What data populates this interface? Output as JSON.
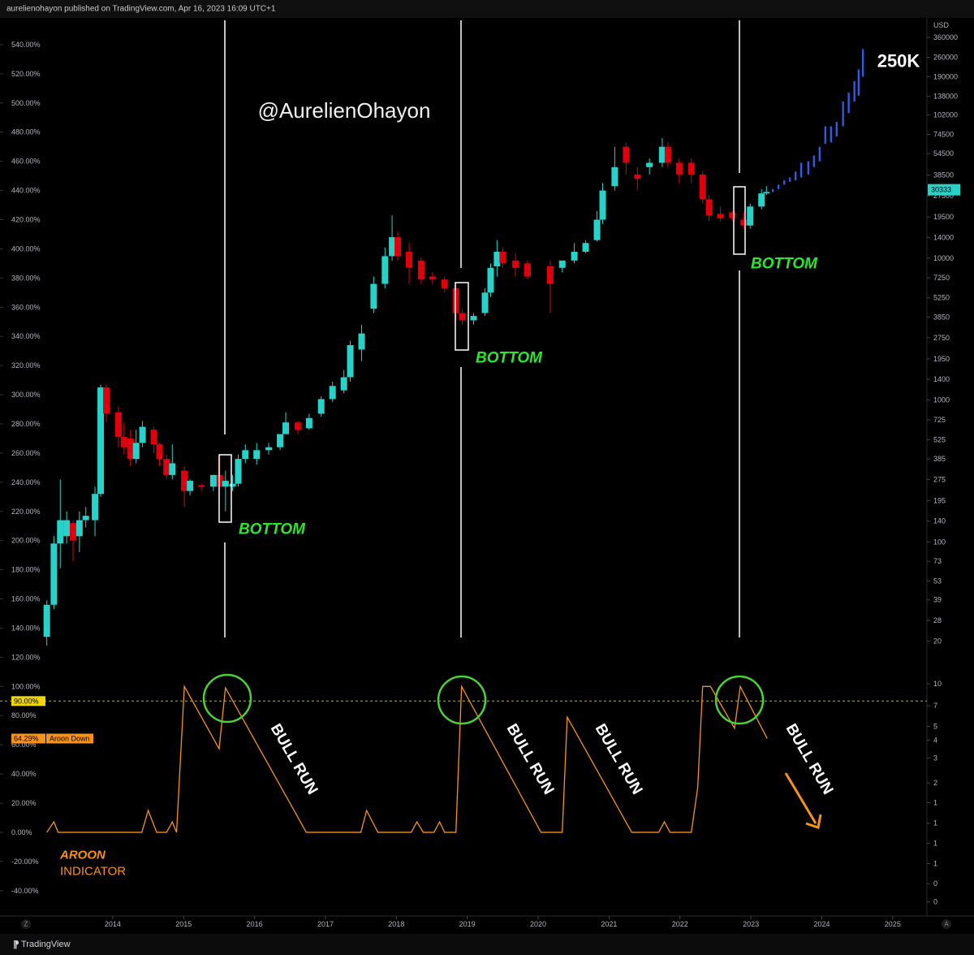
{
  "header": {
    "byline": "aurelienohayon published on TradingView.com, Apr 16, 2023 16:09 UTC+1"
  },
  "footer": {
    "brand": "TradingView",
    "left_button": "Z",
    "right_button": "A"
  },
  "chart_data": {
    "type": "candlestick",
    "x": [
      2013.07,
      2013.17,
      2013.26,
      2013.35,
      2013.44,
      2013.53,
      2013.62,
      2013.75,
      2013.83,
      2013.91,
      2014.08,
      2014.16,
      2014.25,
      2014.33,
      2014.42,
      2014.58,
      2014.66,
      2014.76,
      2014.84,
      2015.01,
      2015.09,
      2015.25,
      2015.42,
      2015.51,
      2015.59,
      2015.69,
      2015.77,
      2015.87,
      2016.03,
      2016.2,
      2016.36,
      2016.44,
      2016.61,
      2016.77,
      2016.94,
      2017.1,
      2017.26,
      2017.35,
      2017.51,
      2017.68,
      2017.84,
      2017.94,
      2018.02,
      2018.18,
      2018.35,
      2018.51,
      2018.68,
      2018.84,
      2018.93,
      2019.09,
      2019.25,
      2019.33,
      2019.42,
      2019.5,
      2019.68,
      2019.85,
      2020.17,
      2020.34,
      2020.51,
      2020.67,
      2020.83,
      2020.91,
      2021.08,
      2021.24,
      2021.4,
      2021.57,
      2021.75,
      2021.83,
      2021.99,
      2022.16,
      2022.32,
      2022.41,
      2022.57,
      2022.74,
      2022.9,
      2022.99,
      2023.15,
      2023.22
    ],
    "open": [
      134,
      156,
      198,
      203,
      212,
      203,
      214,
      214,
      232,
      305,
      288,
      271,
      270,
      256,
      267,
      276,
      266,
      256,
      245,
      248,
      234,
      238,
      237,
      245,
      237,
      237,
      239,
      256,
      256,
      262,
      264,
      273,
      281,
      277,
      287,
      297,
      303,
      312,
      331,
      359,
      376,
      395,
      408,
      398,
      392,
      381,
      379,
      373,
      356,
      351,
      356,
      370,
      388,
      398,
      392,
      390,
      388,
      387,
      392,
      398,
      406,
      420,
      443,
      470,
      451,
      456,
      459,
      470,
      459,
      459,
      451,
      434,
      424,
      425,
      420,
      416,
      429,
      438
    ],
    "high": [
      159,
      203,
      242,
      220,
      214,
      220,
      223,
      237,
      307,
      307,
      292,
      281,
      276,
      276,
      282,
      278,
      267,
      259,
      266,
      251,
      242,
      239,
      245,
      259,
      248,
      245,
      259,
      266,
      267,
      267,
      273,
      288,
      282,
      287,
      299,
      309,
      317,
      337,
      348,
      381,
      401,
      423,
      412,
      404,
      394,
      384,
      381,
      376,
      359,
      356,
      373,
      390,
      406,
      401,
      397,
      392,
      392,
      390,
      404,
      406,
      426,
      445,
      470,
      473,
      456,
      462,
      476,
      473,
      462,
      462,
      453,
      437,
      429,
      426,
      425,
      431,
      441,
      443
    ],
    "low": [
      128,
      153,
      181,
      198,
      186,
      192,
      209,
      203,
      230,
      281,
      264,
      259,
      251,
      253,
      264,
      260,
      251,
      242,
      242,
      223,
      231,
      234,
      234,
      237,
      220,
      234,
      237,
      253,
      252,
      259,
      262,
      273,
      273,
      276,
      285,
      295,
      301,
      309,
      323,
      356,
      373,
      392,
      392,
      376,
      376,
      376,
      370,
      351,
      348,
      348,
      354,
      367,
      381,
      387,
      381,
      379,
      356,
      384,
      390,
      397,
      405,
      417,
      440,
      451,
      440,
      451,
      456,
      456,
      445,
      445,
      431,
      419,
      419,
      419,
      414,
      414,
      427,
      437
    ],
    "close": [
      156,
      198,
      214,
      214,
      200,
      214,
      217,
      232,
      305,
      287,
      271,
      264,
      256,
      267,
      278,
      266,
      256,
      245,
      253,
      234,
      241,
      237,
      245,
      237,
      241,
      239,
      256,
      262,
      262,
      264,
      273,
      281,
      276,
      284,
      297,
      306,
      312,
      334,
      342,
      376,
      395,
      408,
      395,
      387,
      379,
      379,
      373,
      356,
      351,
      354,
      370,
      387,
      398,
      390,
      387,
      381,
      376,
      392,
      398,
      404,
      420,
      440,
      456,
      459,
      448,
      459,
      470,
      459,
      451,
      451,
      434,
      423,
      421,
      421,
      416,
      429,
      438,
      439
    ],
    "up_color": "#27d3c9",
    "down_color": "#e0000d",
    "projection": {
      "color": "#2d5be3",
      "x": [
        2023.31,
        2023.39,
        2023.47,
        2023.55,
        2023.63,
        2023.71,
        2023.81,
        2023.89,
        2023.97,
        2024.05,
        2024.13,
        2024.21,
        2024.3,
        2024.38,
        2024.46,
        2024.52,
        2024.58
      ],
      "low": [
        439,
        441,
        444,
        446,
        447,
        449,
        451,
        456,
        460,
        472,
        473,
        477,
        484,
        493,
        501,
        505,
        518
      ],
      "high": [
        441,
        444,
        447,
        449,
        453,
        459,
        460,
        464,
        470,
        484,
        484,
        487,
        501,
        507,
        515,
        523,
        537
      ]
    },
    "aroon": {
      "name": "Aroon Down",
      "color": "#f7931a",
      "x": [
        2013.07,
        2013.17,
        2013.23,
        2014.41,
        2014.5,
        2014.62,
        2014.76,
        2014.84,
        2014.9,
        2015.01,
        2015.5,
        2015.59,
        2016.73,
        2017.5,
        2017.58,
        2017.74,
        2018.21,
        2018.29,
        2018.38,
        2018.53,
        2018.61,
        2018.68,
        2018.84,
        2018.92,
        2020.04,
        2020.34,
        2020.41,
        2021.32,
        2021.7,
        2021.78,
        2021.86,
        2022.16,
        2022.25,
        2022.32,
        2022.43,
        2022.77,
        2022.85,
        2023.23
      ],
      "values": [
        0,
        7.2,
        0,
        0,
        15,
        0,
        0,
        7.2,
        0,
        100,
        57.3,
        99,
        0,
        0,
        15,
        0,
        0,
        7.2,
        0,
        0,
        7.2,
        0,
        0,
        100,
        0,
        0,
        79,
        0,
        0,
        7.2,
        0,
        0,
        30.6,
        100,
        100,
        71.3,
        100,
        64.29
      ]
    },
    "aroon_badge": {
      "value": 64.29,
      "label": "64.29%"
    },
    "level": {
      "value": 90,
      "label": "90.00%"
    },
    "last_price": 30333,
    "xlim": [
      2012.41,
      2025.46
    ],
    "xticks": [
      2014,
      2015,
      2016,
      2017,
      2018,
      2019,
      2020,
      2021,
      2022,
      2023,
      2024,
      2025
    ],
    "ylim": [
      -55.7,
      550
    ],
    "yticks": [
      {
        "value": -40,
        "label": "-40.00%"
      },
      {
        "value": -20,
        "label": "-20.00%"
      },
      {
        "value": 0,
        "label": "0.00%"
      },
      {
        "value": 20,
        "label": "20.00%"
      },
      {
        "value": 40,
        "label": "40.00%"
      },
      {
        "value": 60,
        "label": "60.00%"
      },
      {
        "value": 80,
        "label": "80.00%"
      },
      {
        "value": 100,
        "label": "100.00%"
      },
      {
        "value": 120,
        "label": "120.00%"
      },
      {
        "value": 140,
        "label": "140.00%"
      },
      {
        "value": 160,
        "label": "160.00%"
      },
      {
        "value": 180,
        "label": "180.00%"
      },
      {
        "value": 200,
        "label": "200.00%"
      },
      {
        "value": 220,
        "label": "220.00%"
      },
      {
        "value": 240,
        "label": "240.00%"
      },
      {
        "value": 260,
        "label": "260.00%"
      },
      {
        "value": 280,
        "label": "280.00%"
      },
      {
        "value": 300,
        "label": "300.00%"
      },
      {
        "value": 320,
        "label": "320.00%"
      },
      {
        "value": 340,
        "label": "340.00%"
      },
      {
        "value": 360,
        "label": "360.00%"
      },
      {
        "value": 380,
        "label": "380.00%"
      },
      {
        "value": 400,
        "label": "400.00%"
      },
      {
        "value": 420,
        "label": "420.00%"
      },
      {
        "value": 440,
        "label": "440.00%"
      },
      {
        "value": 460,
        "label": "460.00%"
      },
      {
        "value": 480,
        "label": "480.00%"
      },
      {
        "value": 500,
        "label": "500.00%"
      },
      {
        "value": 520,
        "label": "520.00%"
      },
      {
        "value": 540,
        "label": "540.00%"
      }
    ],
    "y2label": "USD",
    "y2log": true,
    "y2lim": [
      0.24,
      405000
    ],
    "y2ticks": [
      360000,
      260000,
      190000,
      138000,
      102000,
      74500,
      54500,
      38500,
      27500,
      19500,
      14000,
      10000,
      7250,
      5250,
      3850,
      2750,
      1950,
      1400,
      1000,
      725,
      525,
      385,
      275,
      195,
      140,
      100,
      73,
      53,
      39,
      28,
      20,
      10,
      7,
      5,
      4,
      3,
      2,
      {
        "value": 1.45,
        "label": "1"
      },
      {
        "value": 1.04,
        "label": "1"
      },
      {
        "value": 0.75,
        "label": "1"
      },
      {
        "value": 0.54,
        "label": "1"
      },
      {
        "value": 0.39,
        "label": "0"
      },
      {
        "value": 0.29,
        "label": "0"
      }
    ],
    "annotations": {
      "watermark": "@AurelienOhayon",
      "target": "250K",
      "bottom": [
        "BOTTOM",
        "BOTTOM",
        "BOTTOM"
      ],
      "bull_run": [
        "BULL RUN",
        "BULL RUN",
        "BULL RUN",
        "BULL RUN"
      ],
      "indicator_title": "AROON",
      "indicator_subtitle": "INDICATOR"
    }
  }
}
